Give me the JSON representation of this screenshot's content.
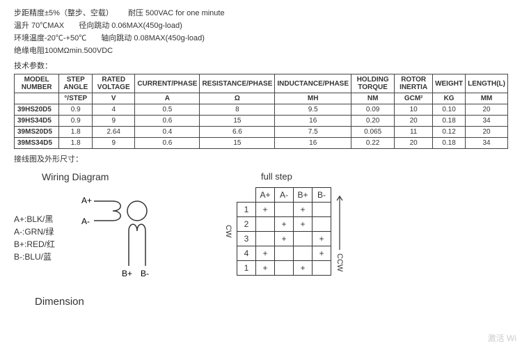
{
  "specs": {
    "line1a": "步距精度±5%（整步、空载）",
    "line1b": "耐压   500VAC for one minute",
    "line2a": "温升   70℃MAX",
    "line2b": "径向跳动 0.06MAX(450g-load)",
    "line3a": "环境温度-20℃-+50℃",
    "line3b": "轴向跳动 0.08MAX(450g-load)",
    "line4": "绝缘电阻100MΩmin.500VDC",
    "tech_param": "技术参数：",
    "wiring_dim": "接线图及外形尺寸："
  },
  "table": {
    "headers": [
      "MODEL NUMBER",
      "STEP ANGLE",
      "RATED VOLTAGE",
      "CURRENT/PHASE",
      "RESISTANCE/PHASE",
      "INDUCTANCE/PHASE",
      "HOLDING TORQUE",
      "ROTOR INERTIA",
      "WEIGHT",
      "LENGTH(L)"
    ],
    "units": [
      "",
      "°/STEP",
      "V",
      "A",
      "Ω",
      "MH",
      "NM",
      "GCM²",
      "KG",
      "MM"
    ],
    "rows": [
      [
        "39HS20D5",
        "0.9",
        "4",
        "0.5",
        "8",
        "9.5",
        "0.09",
        "10",
        "0.10",
        "20"
      ],
      [
        "39HS34D5",
        "0.9",
        "9",
        "0.6",
        "15",
        "16",
        "0.20",
        "20",
        "0.18",
        "34"
      ],
      [
        "39MS20D5",
        "1.8",
        "2.64",
        "0.4",
        "6.6",
        "7.5",
        "0.065",
        "11",
        "0.12",
        "20"
      ],
      [
        "39MS34D5",
        "1.8",
        "9",
        "0.6",
        "15",
        "16",
        "0.22",
        "20",
        "0.18",
        "34"
      ]
    ]
  },
  "wiring": {
    "title": "Wiring Diagram",
    "l1": "A+:BLK/黑",
    "l2": "A-:GRN/绿",
    "l3": "B+:RED/红",
    "l4": "B-:BLU/蓝",
    "ap": "A+",
    "am": "A-",
    "bp": "B+",
    "bm": "B-"
  },
  "fullstep": {
    "title": "full step",
    "cols": [
      "A+",
      "A-",
      "B+",
      "B-"
    ],
    "rownums": [
      "1",
      "2",
      "3",
      "4",
      "1"
    ],
    "grid": [
      [
        "+",
        "",
        "+",
        ""
      ],
      [
        "",
        "+",
        "+",
        ""
      ],
      [
        "",
        "+",
        "",
        "+"
      ],
      [
        "+",
        "",
        "",
        "+"
      ],
      [
        "+",
        "",
        "+",
        ""
      ]
    ],
    "cw": "CW",
    "ccw": "CCW"
  },
  "dimension": "Dimension",
  "watermark": "激活 Wi"
}
